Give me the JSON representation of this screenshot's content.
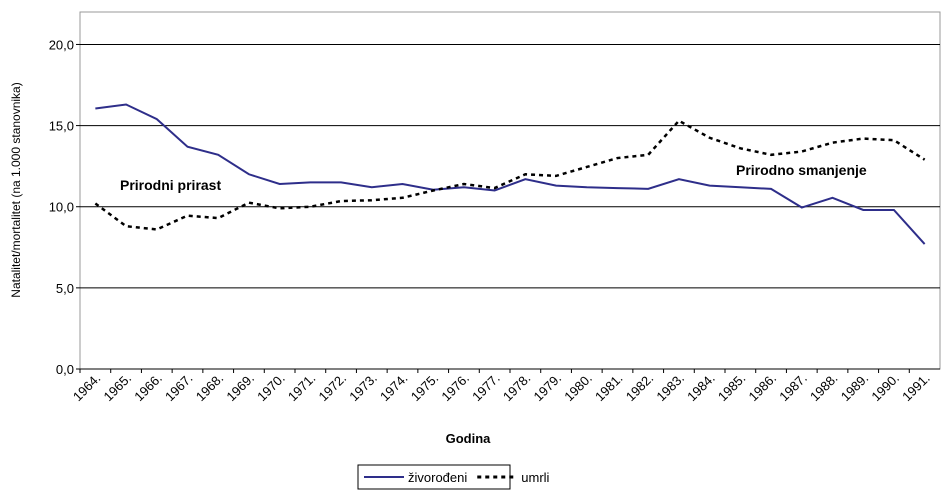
{
  "chart_data": {
    "type": "line",
    "x_label": "Godina",
    "y_label": "Natalitet/mortalitet (na 1.000 stanovnika)",
    "annotations": [
      "Prirodni prirast",
      "Prirodno smanjenje"
    ],
    "categories": [
      "1964.",
      "1965.",
      "1966.",
      "1967.",
      "1968.",
      "1969.",
      "1970.",
      "1971.",
      "1972.",
      "1973.",
      "1974.",
      "1975.",
      "1976.",
      "1977.",
      "1978.",
      "1979.",
      "1980.",
      "1981.",
      "1982.",
      "1983.",
      "1984.",
      "1985.",
      "1986.",
      "1987.",
      "1988.",
      "1989.",
      "1990.",
      "1991."
    ],
    "series": [
      {
        "name": "živorođeni",
        "color": "#2e2e8a",
        "dash": false,
        "values": [
          16.05,
          16.3,
          15.4,
          13.7,
          13.2,
          12.0,
          11.4,
          11.5,
          11.5,
          11.2,
          11.4,
          11.05,
          11.2,
          11.0,
          11.7,
          11.3,
          11.2,
          11.15,
          11.1,
          11.7,
          11.3,
          11.2,
          11.1,
          9.95,
          10.55,
          9.8,
          9.8,
          7.7
        ]
      },
      {
        "name": "umrli",
        "color": "#000000",
        "dash": true,
        "values": [
          10.2,
          8.8,
          8.6,
          9.45,
          9.3,
          10.25,
          9.9,
          10.0,
          10.35,
          10.4,
          10.55,
          11.0,
          11.4,
          11.15,
          12.0,
          11.9,
          12.45,
          13.0,
          13.2,
          15.3,
          14.25,
          13.6,
          13.2,
          13.4,
          13.95,
          14.2,
          14.1,
          12.9
        ]
      }
    ],
    "ylim": [
      0,
      22
    ],
    "yticks": [
      {
        "value": 0,
        "label": "0,0"
      },
      {
        "value": 5,
        "label": "5,0"
      },
      {
        "value": 10,
        "label": "10,0"
      },
      {
        "value": 15,
        "label": "15,0"
      },
      {
        "value": 20,
        "label": "20,0"
      }
    ],
    "grid": true
  }
}
